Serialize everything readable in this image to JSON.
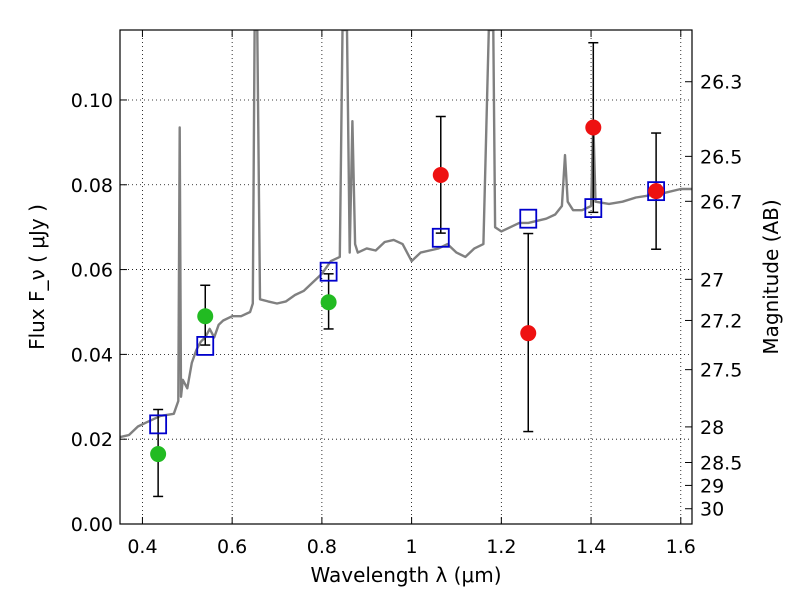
{
  "chart_data": {
    "type": "line",
    "xlabel": "Wavelength  λ (μm)",
    "ylabel": "Flux  F_ν  ( μJy )",
    "ylabel_right": "Magnitude (AB)",
    "xlim": [
      0.35,
      1.625
    ],
    "ylim": [
      0.0,
      0.1165
    ],
    "grid": true,
    "x_ticks": [
      0.4,
      0.6,
      0.8,
      1.0,
      1.2,
      1.4,
      1.6
    ],
    "x_tick_labels": [
      "0.4",
      "0.6",
      "0.8",
      "1",
      "1.2",
      "1.4",
      "1.6"
    ],
    "y_ticks": [
      0.0,
      0.02,
      0.04,
      0.06,
      0.08,
      0.1
    ],
    "y_tick_labels": [
      "0.00",
      "0.02",
      "0.04",
      "0.06",
      "0.08",
      "0.10"
    ],
    "right_ticks": [
      {
        "label": "26.3",
        "flux": 0.1043
      },
      {
        "label": "26.5",
        "flux": 0.0867
      },
      {
        "label": "26.7",
        "flux": 0.0761
      },
      {
        "label": "27",
        "flux": 0.0577
      },
      {
        "label": "27.2",
        "flux": 0.048
      },
      {
        "label": "27.5",
        "flux": 0.0364
      },
      {
        "label": "28",
        "flux": 0.0229
      },
      {
        "label": "28.5",
        "flux": 0.0145
      },
      {
        "label": "29",
        "flux": 0.0091
      },
      {
        "label": "30",
        "flux": 0.0036
      }
    ],
    "model_spectrum": {
      "color": "#808080",
      "points": [
        [
          0.35,
          0.0205
        ],
        [
          0.37,
          0.021
        ],
        [
          0.39,
          0.023
        ],
        [
          0.41,
          0.024
        ],
        [
          0.44,
          0.0255
        ],
        [
          0.47,
          0.026
        ],
        [
          0.48,
          0.029
        ],
        [
          0.483,
          0.0935
        ],
        [
          0.486,
          0.03
        ],
        [
          0.49,
          0.034
        ],
        [
          0.5,
          0.032
        ],
        [
          0.51,
          0.038
        ],
        [
          0.52,
          0.041
        ],
        [
          0.53,
          0.043
        ],
        [
          0.54,
          0.044
        ],
        [
          0.55,
          0.046
        ],
        [
          0.56,
          0.044
        ],
        [
          0.57,
          0.047
        ],
        [
          0.58,
          0.048
        ],
        [
          0.6,
          0.049
        ],
        [
          0.62,
          0.049
        ],
        [
          0.64,
          0.05
        ],
        [
          0.646,
          0.052
        ],
        [
          0.65,
          0.1165
        ],
        [
          0.656,
          0.1165
        ],
        [
          0.662,
          0.053
        ],
        [
          0.68,
          0.0525
        ],
        [
          0.7,
          0.052
        ],
        [
          0.72,
          0.0525
        ],
        [
          0.74,
          0.054
        ],
        [
          0.76,
          0.055
        ],
        [
          0.78,
          0.057
        ],
        [
          0.8,
          0.059
        ],
        [
          0.82,
          0.062
        ],
        [
          0.84,
          0.063
        ],
        [
          0.846,
          0.1165
        ],
        [
          0.856,
          0.1165
        ],
        [
          0.862,
          0.064
        ],
        [
          0.868,
          0.095
        ],
        [
          0.874,
          0.066
        ],
        [
          0.88,
          0.064
        ],
        [
          0.9,
          0.065
        ],
        [
          0.92,
          0.0645
        ],
        [
          0.94,
          0.0665
        ],
        [
          0.96,
          0.067
        ],
        [
          0.98,
          0.066
        ],
        [
          1.0,
          0.062
        ],
        [
          1.02,
          0.064
        ],
        [
          1.04,
          0.0645
        ],
        [
          1.06,
          0.065
        ],
        [
          1.08,
          0.066
        ],
        [
          1.1,
          0.064
        ],
        [
          1.12,
          0.063
        ],
        [
          1.14,
          0.065
        ],
        [
          1.16,
          0.066
        ],
        [
          1.172,
          0.1165
        ],
        [
          1.182,
          0.1165
        ],
        [
          1.186,
          0.07
        ],
        [
          1.2,
          0.069
        ],
        [
          1.22,
          0.07
        ],
        [
          1.24,
          0.071
        ],
        [
          1.26,
          0.071
        ],
        [
          1.28,
          0.0715
        ],
        [
          1.3,
          0.072
        ],
        [
          1.32,
          0.073
        ],
        [
          1.335,
          0.075
        ],
        [
          1.342,
          0.087
        ],
        [
          1.348,
          0.076
        ],
        [
          1.36,
          0.074
        ],
        [
          1.38,
          0.074
        ],
        [
          1.4,
          0.075
        ],
        [
          1.405,
          0.095
        ],
        [
          1.41,
          0.076
        ],
        [
          1.44,
          0.0755
        ],
        [
          1.47,
          0.076
        ],
        [
          1.5,
          0.077
        ],
        [
          1.53,
          0.0775
        ],
        [
          1.56,
          0.078
        ],
        [
          1.6,
          0.079
        ],
        [
          1.625,
          0.079
        ]
      ]
    },
    "series": [
      {
        "marker": "open-square",
        "color": "#0000cc",
        "points": [
          {
            "x": 0.435,
            "y": 0.0235
          },
          {
            "x": 0.54,
            "y": 0.042
          },
          {
            "x": 0.815,
            "y": 0.0595
          },
          {
            "x": 1.065,
            "y": 0.0675
          },
          {
            "x": 1.26,
            "y": 0.072
          },
          {
            "x": 1.405,
            "y": 0.0745
          },
          {
            "x": 1.545,
            "y": 0.0785
          }
        ]
      },
      {
        "marker": "filled-circle",
        "color": "#22bb22",
        "points": [
          {
            "x": 0.435,
            "y": 0.0165,
            "err_lo": 0.01,
            "err_hi": 0.0105
          },
          {
            "x": 0.54,
            "y": 0.049,
            "err_lo": 0.0068,
            "err_hi": 0.0073
          },
          {
            "x": 0.815,
            "y": 0.0523,
            "err_lo": 0.0063,
            "err_hi": 0.0067
          }
        ]
      },
      {
        "marker": "filled-circle",
        "color": "#ee1111",
        "points": [
          {
            "x": 1.065,
            "y": 0.0823,
            "err_lo": 0.0137,
            "err_hi": 0.0138
          },
          {
            "x": 1.26,
            "y": 0.045,
            "err_lo": 0.0232,
            "err_hi": 0.0235
          },
          {
            "x": 1.405,
            "y": 0.0935,
            "err_lo": 0.02,
            "err_hi": 0.02
          },
          {
            "x": 1.545,
            "y": 0.0785,
            "err_lo": 0.0137,
            "err_hi": 0.0137
          }
        ]
      }
    ]
  }
}
